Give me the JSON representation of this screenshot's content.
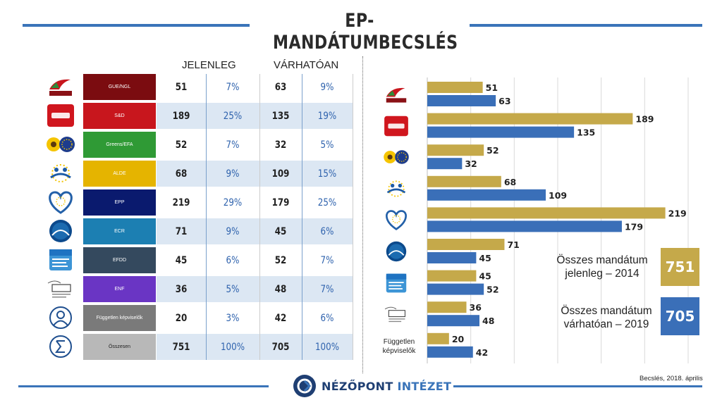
{
  "title": "EP-MANDÁTUMBECSLÉS",
  "table": {
    "head_current": "JELENLEG",
    "head_expected": "VÁRHATÓAN",
    "rows": [
      {
        "party": "GUE/NGL",
        "current": "51",
        "current_pct": "7%",
        "expected": "63",
        "expected_pct": "9%",
        "color": "#7b0c10",
        "logo": "gue-ngl-logo"
      },
      {
        "party": "S&D",
        "current": "189",
        "current_pct": "25%",
        "expected": "135",
        "expected_pct": "19%",
        "color": "#c8161d",
        "logo": "s-and-d-logo"
      },
      {
        "party": "Greens/EFA",
        "current": "52",
        "current_pct": "7%",
        "expected": "32",
        "expected_pct": "5%",
        "color": "#2f9a35",
        "logo": "greens-efa-logo"
      },
      {
        "party": "ALDE",
        "current": "68",
        "current_pct": "9%",
        "expected": "109",
        "expected_pct": "15%",
        "color": "#e5b400",
        "logo": "alde-logo"
      },
      {
        "party": "EPP",
        "current": "219",
        "current_pct": "29%",
        "expected": "179",
        "expected_pct": "25%",
        "color": "#0a1a6e",
        "logo": "epp-logo"
      },
      {
        "party": "ECR",
        "current": "71",
        "current_pct": "9%",
        "expected": "45",
        "expected_pct": "6%",
        "color": "#1c7fb2",
        "logo": "ecr-logo"
      },
      {
        "party": "EFDD",
        "current": "45",
        "current_pct": "6%",
        "expected": "52",
        "expected_pct": "7%",
        "color": "#34495e",
        "logo": "efdd-logo"
      },
      {
        "party": "ENF",
        "current": "36",
        "current_pct": "5%",
        "expected": "48",
        "expected_pct": "7%",
        "color": "#6a35c4",
        "logo": "enf-logo"
      },
      {
        "party": "Független képviselők",
        "current": "20",
        "current_pct": "3%",
        "expected": "42",
        "expected_pct": "6%",
        "color": "#7a7a7a",
        "logo": "person-icon"
      },
      {
        "party": "Összesen",
        "current": "751",
        "current_pct": "100%",
        "expected": "705",
        "expected_pct": "100%",
        "color": "#b8b8b8",
        "logo": "sigma-icon"
      }
    ]
  },
  "chart_data": {
    "type": "bar",
    "orientation": "horizontal",
    "categories": [
      "GUE/NGL",
      "S&D",
      "Greens/EFA",
      "ALDE",
      "EPP",
      "ECR",
      "EFDD",
      "ENF",
      "Független képviselők"
    ],
    "category_text_label": "Független\nképviselők",
    "series": [
      {
        "name": "",
        "color": "#c5a94a",
        "values": [
          51,
          189,
          52,
          68,
          219,
          71,
          45,
          36,
          20
        ]
      },
      {
        "name": "",
        "color": "#3a6fb8",
        "values": [
          63,
          135,
          32,
          109,
          179,
          45,
          52,
          48,
          42
        ]
      }
    ],
    "xlim": [
      0,
      240
    ],
    "grid": true
  },
  "summary": {
    "current_text": "Összes mandátum\njelenleg – 2014",
    "current_value": "751",
    "current_color": "#c5a94a",
    "expected_text": "Összes mandátum\nvárhatóan – 2019",
    "expected_value": "705",
    "expected_color": "#3a6fb8"
  },
  "footer": {
    "brand_main": "NÉZŐPONT",
    "brand_accent": "INTÉZET",
    "source": "Becslés, 2018. április"
  }
}
